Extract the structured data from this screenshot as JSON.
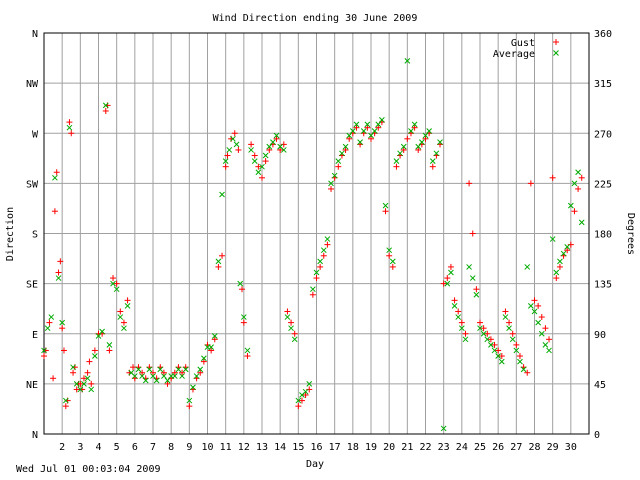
{
  "chart_data": {
    "type": "scatter",
    "title": "Wind Direction ending 30 June 2009",
    "xlabel": "Day",
    "ylabel_left": "Direction",
    "ylabel_right": "Degrees",
    "xlim": [
      1,
      31
    ],
    "ylim": [
      0,
      360
    ],
    "grid": true,
    "legend_position": "top-right",
    "x_ticks": [
      2,
      3,
      4,
      5,
      6,
      7,
      8,
      9,
      10,
      11,
      12,
      13,
      14,
      15,
      16,
      17,
      18,
      19,
      20,
      21,
      22,
      23,
      24,
      25,
      26,
      27,
      28,
      29,
      30
    ],
    "x_tick_labels": [
      "2",
      "3",
      "4",
      "5",
      "6",
      "7",
      "8",
      "9",
      "10",
      "11",
      "12",
      "13",
      "14",
      "15",
      "16",
      "17",
      "18",
      "19",
      "20",
      "21",
      "22",
      "23",
      "24",
      "25",
      "26",
      "27",
      "28",
      "29",
      "30"
    ],
    "y_left_ticks": [
      0,
      45,
      90,
      135,
      180,
      225,
      270,
      315,
      360
    ],
    "y_left_labels": [
      "N",
      "NE",
      "E",
      "SE",
      "S",
      "SW",
      "W",
      "NW",
      "N"
    ],
    "y_right_ticks": [
      0,
      45,
      90,
      135,
      180,
      225,
      270,
      315,
      360
    ],
    "y_right_labels": [
      "0",
      "45",
      "90",
      "135",
      "180",
      "225",
      "270",
      "315",
      "360"
    ],
    "colors": {
      "gust": "#ff0000",
      "average": "#00aa00"
    },
    "series": [
      {
        "name": "Gust",
        "marker": "plus",
        "points": [
          [
            1.0,
            70
          ],
          [
            1.1,
            75
          ],
          [
            1.3,
            100
          ],
          [
            1.5,
            50
          ],
          [
            1.6,
            200
          ],
          [
            1.7,
            235
          ],
          [
            1.8,
            145
          ],
          [
            1.9,
            155
          ],
          [
            2.0,
            95
          ],
          [
            2.1,
            75
          ],
          [
            2.2,
            25
          ],
          [
            2.3,
            30
          ],
          [
            2.4,
            280
          ],
          [
            2.5,
            270
          ],
          [
            2.6,
            55
          ],
          [
            2.7,
            60
          ],
          [
            2.8,
            40
          ],
          [
            2.9,
            45
          ],
          [
            3.0,
            45
          ],
          [
            3.1,
            40
          ],
          [
            3.2,
            50
          ],
          [
            3.4,
            55
          ],
          [
            3.5,
            65
          ],
          [
            3.6,
            45
          ],
          [
            3.8,
            75
          ],
          [
            4.0,
            90
          ],
          [
            4.2,
            90
          ],
          [
            4.4,
            290
          ],
          [
            4.5,
            295
          ],
          [
            4.6,
            75
          ],
          [
            4.8,
            140
          ],
          [
            5.0,
            135
          ],
          [
            5.2,
            110
          ],
          [
            5.4,
            100
          ],
          [
            5.6,
            120
          ],
          [
            5.7,
            55
          ],
          [
            5.9,
            60
          ],
          [
            6.0,
            50
          ],
          [
            6.2,
            60
          ],
          [
            6.4,
            55
          ],
          [
            6.6,
            50
          ],
          [
            6.8,
            60
          ],
          [
            7.0,
            55
          ],
          [
            7.2,
            50
          ],
          [
            7.4,
            60
          ],
          [
            7.6,
            55
          ],
          [
            7.8,
            45
          ],
          [
            8.0,
            50
          ],
          [
            8.2,
            55
          ],
          [
            8.4,
            60
          ],
          [
            8.6,
            55
          ],
          [
            8.8,
            60
          ],
          [
            9.0,
            25
          ],
          [
            9.2,
            40
          ],
          [
            9.4,
            50
          ],
          [
            9.6,
            55
          ],
          [
            9.8,
            65
          ],
          [
            10.0,
            80
          ],
          [
            10.2,
            75
          ],
          [
            10.4,
            85
          ],
          [
            10.6,
            150
          ],
          [
            10.8,
            160
          ],
          [
            11.0,
            240
          ],
          [
            11.1,
            250
          ],
          [
            11.3,
            265
          ],
          [
            11.5,
            270
          ],
          [
            11.7,
            255
          ],
          [
            11.9,
            130
          ],
          [
            12.0,
            100
          ],
          [
            12.2,
            70
          ],
          [
            12.4,
            260
          ],
          [
            12.6,
            250
          ],
          [
            12.8,
            240
          ],
          [
            13.0,
            230
          ],
          [
            13.2,
            245
          ],
          [
            13.4,
            255
          ],
          [
            13.6,
            260
          ],
          [
            13.8,
            265
          ],
          [
            14.0,
            255
          ],
          [
            14.2,
            260
          ],
          [
            14.4,
            110
          ],
          [
            14.6,
            100
          ],
          [
            14.8,
            90
          ],
          [
            15.0,
            25
          ],
          [
            15.2,
            30
          ],
          [
            15.4,
            35
          ],
          [
            15.6,
            40
          ],
          [
            15.8,
            125
          ],
          [
            16.0,
            140
          ],
          [
            16.2,
            150
          ],
          [
            16.4,
            160
          ],
          [
            16.6,
            170
          ],
          [
            16.8,
            220
          ],
          [
            17.0,
            230
          ],
          [
            17.2,
            240
          ],
          [
            17.4,
            250
          ],
          [
            17.6,
            255
          ],
          [
            17.8,
            265
          ],
          [
            18.0,
            270
          ],
          [
            18.2,
            275
          ],
          [
            18.4,
            260
          ],
          [
            18.6,
            270
          ],
          [
            18.8,
            275
          ],
          [
            19.0,
            265
          ],
          [
            19.2,
            270
          ],
          [
            19.4,
            275
          ],
          [
            19.6,
            280
          ],
          [
            19.8,
            200
          ],
          [
            20.0,
            160
          ],
          [
            20.2,
            150
          ],
          [
            20.4,
            240
          ],
          [
            20.6,
            250
          ],
          [
            20.8,
            255
          ],
          [
            21.0,
            265
          ],
          [
            21.2,
            270
          ],
          [
            21.4,
            275
          ],
          [
            21.6,
            255
          ],
          [
            21.8,
            260
          ],
          [
            22.0,
            265
          ],
          [
            22.2,
            270
          ],
          [
            22.4,
            240
          ],
          [
            22.6,
            250
          ],
          [
            22.8,
            260
          ],
          [
            23.0,
            135
          ],
          [
            23.2,
            140
          ],
          [
            23.4,
            150
          ],
          [
            23.6,
            120
          ],
          [
            23.8,
            110
          ],
          [
            24.0,
            100
          ],
          [
            24.2,
            90
          ],
          [
            24.4,
            225
          ],
          [
            24.6,
            180
          ],
          [
            24.8,
            130
          ],
          [
            25.0,
            100
          ],
          [
            25.2,
            95
          ],
          [
            25.4,
            90
          ],
          [
            25.6,
            85
          ],
          [
            25.8,
            80
          ],
          [
            26.0,
            75
          ],
          [
            26.2,
            70
          ],
          [
            26.4,
            110
          ],
          [
            26.6,
            100
          ],
          [
            26.8,
            90
          ],
          [
            27.0,
            80
          ],
          [
            27.2,
            70
          ],
          [
            27.4,
            60
          ],
          [
            27.6,
            55
          ],
          [
            27.8,
            225
          ],
          [
            28.0,
            120
          ],
          [
            28.2,
            115
          ],
          [
            28.4,
            105
          ],
          [
            28.6,
            95
          ],
          [
            28.8,
            85
          ],
          [
            29.0,
            230
          ],
          [
            29.2,
            140
          ],
          [
            29.4,
            150
          ],
          [
            29.6,
            160
          ],
          [
            29.8,
            165
          ],
          [
            30.0,
            170
          ],
          [
            30.2,
            200
          ],
          [
            30.4,
            220
          ],
          [
            30.6,
            230
          ]
        ]
      },
      {
        "name": "Average",
        "marker": "cross",
        "points": [
          [
            1.0,
            75
          ],
          [
            1.2,
            95
          ],
          [
            1.4,
            105
          ],
          [
            1.6,
            230
          ],
          [
            1.8,
            140
          ],
          [
            2.0,
            100
          ],
          [
            2.2,
            30
          ],
          [
            2.4,
            275
          ],
          [
            2.6,
            60
          ],
          [
            2.8,
            45
          ],
          [
            3.0,
            40
          ],
          [
            3.2,
            45
          ],
          [
            3.4,
            50
          ],
          [
            3.6,
            40
          ],
          [
            3.8,
            70
          ],
          [
            4.0,
            88
          ],
          [
            4.2,
            92
          ],
          [
            4.4,
            295
          ],
          [
            4.6,
            80
          ],
          [
            4.8,
            135
          ],
          [
            5.0,
            130
          ],
          [
            5.2,
            105
          ],
          [
            5.4,
            95
          ],
          [
            5.6,
            115
          ],
          [
            5.8,
            55
          ],
          [
            6.0,
            52
          ],
          [
            6.2,
            58
          ],
          [
            6.4,
            52
          ],
          [
            6.6,
            48
          ],
          [
            6.8,
            58
          ],
          [
            7.0,
            52
          ],
          [
            7.2,
            48
          ],
          [
            7.4,
            58
          ],
          [
            7.6,
            52
          ],
          [
            7.8,
            48
          ],
          [
            8.0,
            52
          ],
          [
            8.2,
            52
          ],
          [
            8.4,
            58
          ],
          [
            8.6,
            52
          ],
          [
            8.8,
            58
          ],
          [
            9.0,
            30
          ],
          [
            9.2,
            42
          ],
          [
            9.4,
            52
          ],
          [
            9.6,
            58
          ],
          [
            9.8,
            68
          ],
          [
            10.0,
            78
          ],
          [
            10.2,
            78
          ],
          [
            10.4,
            88
          ],
          [
            10.6,
            155
          ],
          [
            10.8,
            215
          ],
          [
            11.0,
            245
          ],
          [
            11.2,
            255
          ],
          [
            11.4,
            265
          ],
          [
            11.6,
            260
          ],
          [
            11.8,
            135
          ],
          [
            12.0,
            105
          ],
          [
            12.2,
            75
          ],
          [
            12.4,
            255
          ],
          [
            12.6,
            245
          ],
          [
            12.8,
            235
          ],
          [
            13.0,
            240
          ],
          [
            13.2,
            250
          ],
          [
            13.4,
            258
          ],
          [
            13.6,
            262
          ],
          [
            13.8,
            268
          ],
          [
            14.0,
            258
          ],
          [
            14.2,
            255
          ],
          [
            14.4,
            105
          ],
          [
            14.6,
            95
          ],
          [
            14.8,
            85
          ],
          [
            15.0,
            30
          ],
          [
            15.2,
            35
          ],
          [
            15.4,
            38
          ],
          [
            15.6,
            45
          ],
          [
            15.8,
            130
          ],
          [
            16.0,
            145
          ],
          [
            16.2,
            155
          ],
          [
            16.4,
            165
          ],
          [
            16.6,
            175
          ],
          [
            16.8,
            225
          ],
          [
            17.0,
            232
          ],
          [
            17.2,
            245
          ],
          [
            17.4,
            252
          ],
          [
            17.6,
            258
          ],
          [
            17.8,
            268
          ],
          [
            18.0,
            272
          ],
          [
            18.2,
            278
          ],
          [
            18.4,
            262
          ],
          [
            18.6,
            272
          ],
          [
            18.8,
            278
          ],
          [
            19.0,
            268
          ],
          [
            19.2,
            272
          ],
          [
            19.4,
            278
          ],
          [
            19.6,
            282
          ],
          [
            19.8,
            205
          ],
          [
            20.0,
            165
          ],
          [
            20.2,
            155
          ],
          [
            20.4,
            245
          ],
          [
            20.6,
            252
          ],
          [
            20.8,
            258
          ],
          [
            21.0,
            335
          ],
          [
            21.2,
            272
          ],
          [
            21.4,
            278
          ],
          [
            21.6,
            258
          ],
          [
            21.8,
            262
          ],
          [
            22.0,
            268
          ],
          [
            22.2,
            272
          ],
          [
            22.4,
            245
          ],
          [
            22.6,
            252
          ],
          [
            22.8,
            262
          ],
          [
            23.0,
            5
          ],
          [
            23.2,
            135
          ],
          [
            23.4,
            145
          ],
          [
            23.6,
            115
          ],
          [
            23.8,
            105
          ],
          [
            24.0,
            95
          ],
          [
            24.2,
            85
          ],
          [
            24.4,
            150
          ],
          [
            24.6,
            140
          ],
          [
            24.8,
            125
          ],
          [
            25.0,
            95
          ],
          [
            25.2,
            90
          ],
          [
            25.4,
            85
          ],
          [
            25.6,
            80
          ],
          [
            25.8,
            75
          ],
          [
            26.0,
            70
          ],
          [
            26.2,
            65
          ],
          [
            26.4,
            105
          ],
          [
            26.6,
            95
          ],
          [
            26.8,
            85
          ],
          [
            27.0,
            75
          ],
          [
            27.2,
            65
          ],
          [
            27.4,
            58
          ],
          [
            27.6,
            150
          ],
          [
            27.8,
            115
          ],
          [
            28.0,
            110
          ],
          [
            28.2,
            100
          ],
          [
            28.4,
            90
          ],
          [
            28.6,
            80
          ],
          [
            28.8,
            75
          ],
          [
            29.0,
            175
          ],
          [
            29.2,
            145
          ],
          [
            29.4,
            155
          ],
          [
            29.6,
            162
          ],
          [
            29.8,
            168
          ],
          [
            30.0,
            205
          ],
          [
            30.2,
            225
          ],
          [
            30.4,
            235
          ],
          [
            30.6,
            190
          ]
        ]
      }
    ]
  },
  "footer": {
    "timestamp": "Wed Jul 01 00:03:04 2009"
  }
}
